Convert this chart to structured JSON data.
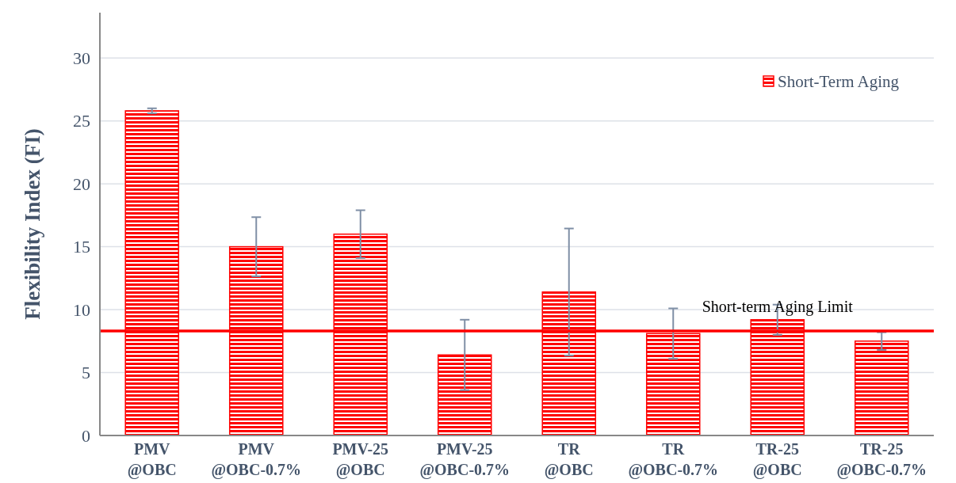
{
  "chart_data": {
    "type": "bar",
    "ylabel": "Flexibility Index (FI)",
    "categories": [
      "PMV\n@OBC",
      "PMV\n@OBC-0.7%",
      "PMV-25\n@OBC",
      "PMV-25\n@OBC-0.7%",
      "TR\n@OBC",
      "TR\n@OBC-0.7%",
      "TR-25\n@OBC",
      "TR-25\n@OBC-0.7%"
    ],
    "series": [
      {
        "name": "Short-Term Aging",
        "color": "#ff0000",
        "values": [
          25.8,
          15.0,
          16.0,
          6.4,
          11.4,
          8.1,
          9.2,
          7.5
        ],
        "errors": [
          0.2,
          2.35,
          1.9,
          2.8,
          5.05,
          2.0,
          1.2,
          0.7
        ]
      }
    ],
    "ylim": [
      0,
      33.6
    ],
    "yticks": [
      0,
      5,
      10,
      15,
      20,
      25,
      30
    ],
    "grid": "y",
    "legend": "top right",
    "ref_lines": [
      {
        "axis": "y",
        "value": 8.3,
        "label": "Short-term Aging Limit",
        "color": "#ff0000"
      }
    ]
  }
}
